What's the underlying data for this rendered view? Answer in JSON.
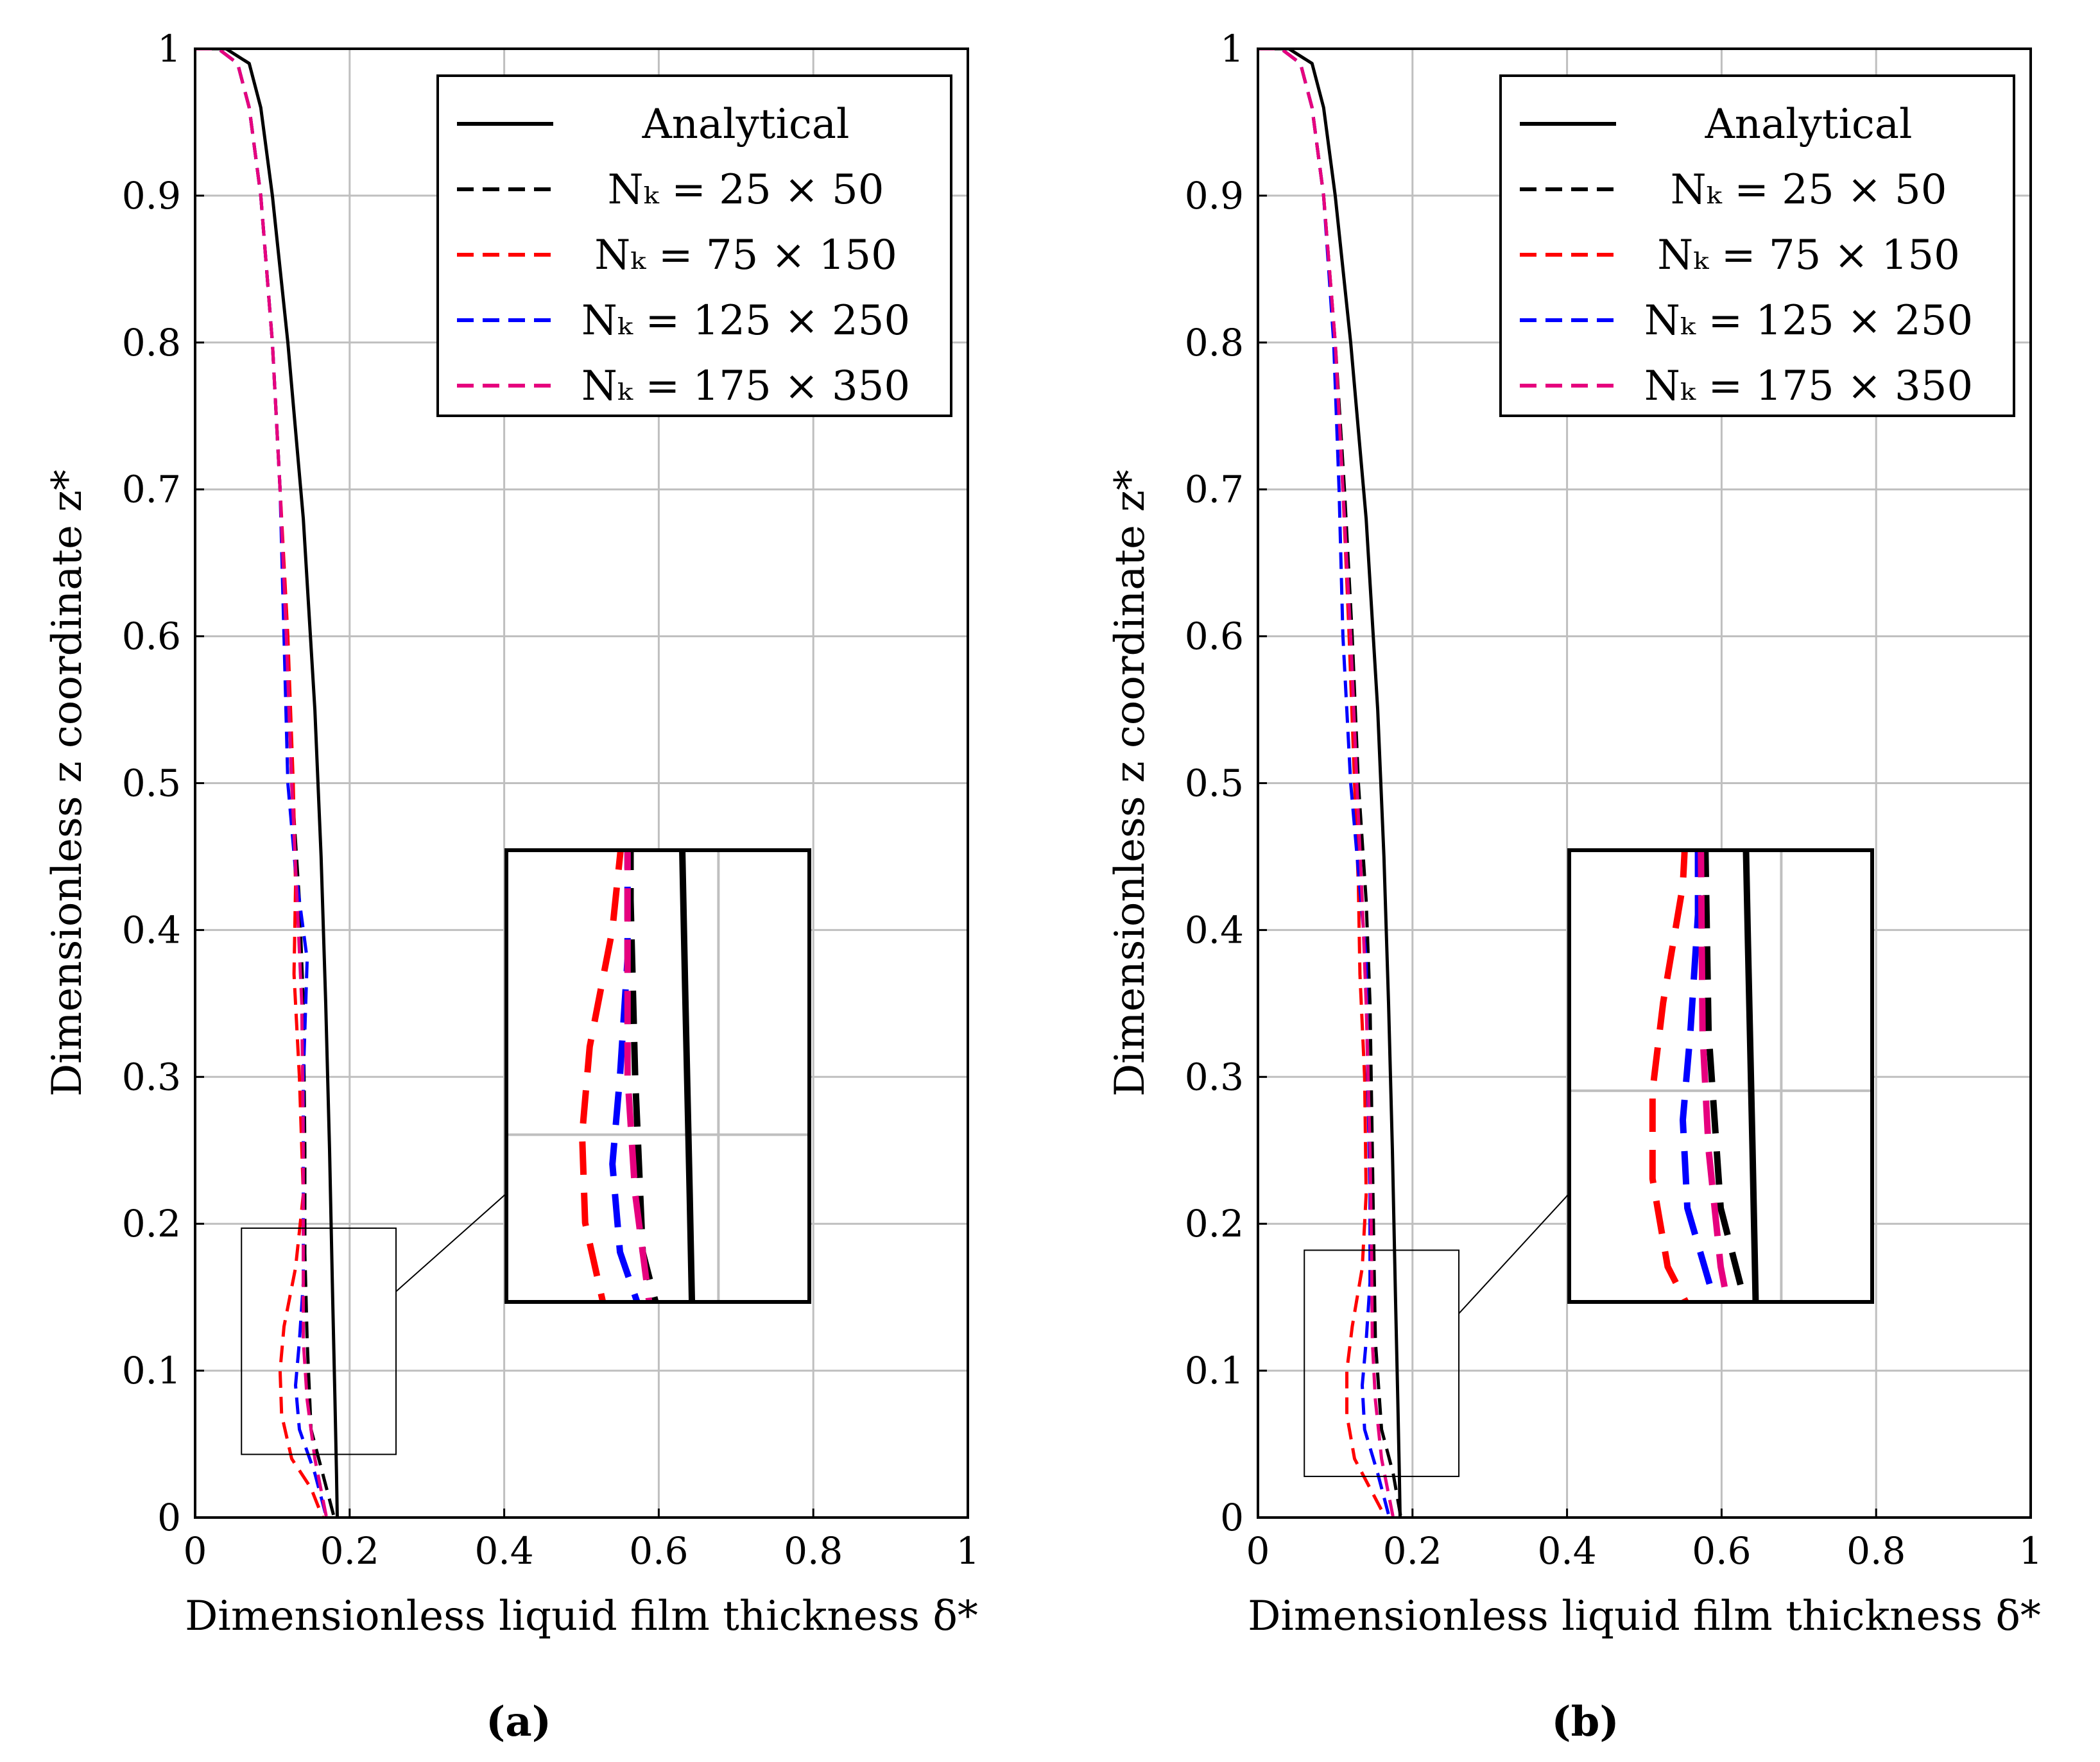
{
  "legend_entries": [
    {
      "label": "Analytical",
      "color": "#000000",
      "dash": "solid"
    },
    {
      "label": "Nₖ = 25 × 50",
      "color": "#000000",
      "dash": "dashed"
    },
    {
      "label": "Nₖ = 75 × 150",
      "color": "#ff0000",
      "dash": "dashed"
    },
    {
      "label": "Nₖ = 125 × 250",
      "color": "#0000ff",
      "dash": "dashed"
    },
    {
      "label": "Nₖ = 175 × 350",
      "color": "#e6007e",
      "dash": "dashed"
    }
  ],
  "chart_data": [
    {
      "type": "line",
      "panel_label": "(a)",
      "xlabel": "Dimensionless liquid film thickness δ*",
      "ylabel": "Dimensionless z coordinate z*",
      "xlim": [
        0,
        1
      ],
      "ylim": [
        0,
        1
      ],
      "xticks": [
        "0",
        "0.2",
        "0.4",
        "0.6",
        "0.8",
        "1"
      ],
      "yticks": [
        "0",
        "0.1",
        "0.2",
        "0.3",
        "0.4",
        "0.5",
        "0.6",
        "0.7",
        "0.8",
        "0.9",
        "1"
      ],
      "grid": true,
      "legend_position": "top-right",
      "zoom_region": {
        "x": [
          0.06,
          0.26
        ],
        "y": [
          0.043,
          0.197
        ]
      },
      "series": [
        {
          "name": "Analytical",
          "points": [
            [
              0,
              1
            ],
            [
              0.04,
              1
            ],
            [
              0.07,
              0.99
            ],
            [
              0.085,
              0.96
            ],
            [
              0.1,
              0.9
            ],
            [
              0.12,
              0.8
            ],
            [
              0.14,
              0.68
            ],
            [
              0.155,
              0.55
            ],
            [
              0.163,
              0.45
            ],
            [
              0.169,
              0.35
            ],
            [
              0.174,
              0.25
            ],
            [
              0.178,
              0.15
            ],
            [
              0.181,
              0.08
            ],
            [
              0.183,
              0.03
            ],
            [
              0.184,
              0
            ]
          ]
        },
        {
          "name": "Nₖ = 25 × 50",
          "points": [
            [
              0,
              1
            ],
            [
              0.03,
              1
            ],
            [
              0.055,
              0.99
            ],
            [
              0.07,
              0.96
            ],
            [
              0.085,
              0.9
            ],
            [
              0.1,
              0.8
            ],
            [
              0.11,
              0.7
            ],
            [
              0.118,
              0.6
            ],
            [
              0.125,
              0.5
            ],
            [
              0.135,
              0.42
            ],
            [
              0.14,
              0.35
            ],
            [
              0.142,
              0.25
            ],
            [
              0.142,
              0.18
            ],
            [
              0.145,
              0.12
            ],
            [
              0.15,
              0.06
            ],
            [
              0.165,
              0.03
            ],
            [
              0.18,
              0
            ]
          ]
        },
        {
          "name": "Nₖ = 75 × 150",
          "points": [
            [
              0,
              1
            ],
            [
              0.03,
              1
            ],
            [
              0.055,
              0.99
            ],
            [
              0.07,
              0.96
            ],
            [
              0.085,
              0.9
            ],
            [
              0.1,
              0.8
            ],
            [
              0.11,
              0.7
            ],
            [
              0.12,
              0.6
            ],
            [
              0.127,
              0.5
            ],
            [
              0.13,
              0.43
            ],
            [
              0.128,
              0.37
            ],
            [
              0.135,
              0.3
            ],
            [
              0.14,
              0.22
            ],
            [
              0.13,
              0.17
            ],
            [
              0.115,
              0.13
            ],
            [
              0.11,
              0.1
            ],
            [
              0.112,
              0.07
            ],
            [
              0.125,
              0.04
            ],
            [
              0.15,
              0.02
            ],
            [
              0.165,
              0
            ]
          ]
        },
        {
          "name": "Nₖ = 125 × 250",
          "points": [
            [
              0,
              1
            ],
            [
              0.03,
              1
            ],
            [
              0.055,
              0.99
            ],
            [
              0.07,
              0.96
            ],
            [
              0.085,
              0.9
            ],
            [
              0.1,
              0.8
            ],
            [
              0.11,
              0.7
            ],
            [
              0.115,
              0.6
            ],
            [
              0.12,
              0.5
            ],
            [
              0.13,
              0.44
            ],
            [
              0.145,
              0.38
            ],
            [
              0.14,
              0.3
            ],
            [
              0.14,
              0.22
            ],
            [
              0.14,
              0.16
            ],
            [
              0.135,
              0.12
            ],
            [
              0.13,
              0.09
            ],
            [
              0.135,
              0.06
            ],
            [
              0.155,
              0.03
            ],
            [
              0.17,
              0
            ]
          ]
        },
        {
          "name": "Nₖ = 175 × 350",
          "points": [
            [
              0,
              1
            ],
            [
              0.03,
              1
            ],
            [
              0.055,
              0.99
            ],
            [
              0.07,
              0.96
            ],
            [
              0.085,
              0.9
            ],
            [
              0.1,
              0.8
            ],
            [
              0.11,
              0.7
            ],
            [
              0.118,
              0.6
            ],
            [
              0.125,
              0.5
            ],
            [
              0.132,
              0.42
            ],
            [
              0.138,
              0.35
            ],
            [
              0.14,
              0.25
            ],
            [
              0.14,
              0.18
            ],
            [
              0.14,
              0.12
            ],
            [
              0.145,
              0.08
            ],
            [
              0.155,
              0.04
            ],
            [
              0.17,
              0
            ]
          ]
        }
      ]
    },
    {
      "type": "line",
      "panel_label": "(b)",
      "xlabel": "Dimensionless liquid film thickness δ*",
      "ylabel": "Dimensionless z coordinate z*",
      "xlim": [
        0,
        1
      ],
      "ylim": [
        0,
        1
      ],
      "xticks": [
        "0",
        "0.2",
        "0.4",
        "0.6",
        "0.8",
        "1"
      ],
      "yticks": [
        "0",
        "0.1",
        "0.2",
        "0.3",
        "0.4",
        "0.5",
        "0.6",
        "0.7",
        "0.8",
        "0.9",
        "1"
      ],
      "grid": true,
      "legend_position": "top-right",
      "zoom_region": {
        "x": [
          0.06,
          0.26
        ],
        "y": [
          0.028,
          0.182
        ]
      },
      "series": [
        {
          "name": "Analytical",
          "points": [
            [
              0,
              1
            ],
            [
              0.04,
              1
            ],
            [
              0.07,
              0.99
            ],
            [
              0.085,
              0.96
            ],
            [
              0.1,
              0.9
            ],
            [
              0.12,
              0.8
            ],
            [
              0.14,
              0.68
            ],
            [
              0.155,
              0.55
            ],
            [
              0.163,
              0.45
            ],
            [
              0.169,
              0.35
            ],
            [
              0.174,
              0.25
            ],
            [
              0.178,
              0.15
            ],
            [
              0.181,
              0.08
            ],
            [
              0.183,
              0.03
            ],
            [
              0.184,
              0
            ]
          ]
        },
        {
          "name": "Nₖ = 25 × 50",
          "points": [
            [
              0,
              1
            ],
            [
              0.03,
              1
            ],
            [
              0.055,
              0.99
            ],
            [
              0.07,
              0.96
            ],
            [
              0.085,
              0.9
            ],
            [
              0.1,
              0.8
            ],
            [
              0.112,
              0.7
            ],
            [
              0.122,
              0.6
            ],
            [
              0.13,
              0.5
            ],
            [
              0.14,
              0.42
            ],
            [
              0.145,
              0.35
            ],
            [
              0.148,
              0.25
            ],
            [
              0.15,
              0.18
            ],
            [
              0.152,
              0.12
            ],
            [
              0.16,
              0.06
            ],
            [
              0.175,
              0.03
            ],
            [
              0.185,
              0
            ]
          ]
        },
        {
          "name": "Nₖ = 75 × 150",
          "points": [
            [
              0,
              1
            ],
            [
              0.03,
              1
            ],
            [
              0.055,
              0.99
            ],
            [
              0.07,
              0.96
            ],
            [
              0.085,
              0.9
            ],
            [
              0.1,
              0.8
            ],
            [
              0.11,
              0.7
            ],
            [
              0.118,
              0.6
            ],
            [
              0.125,
              0.5
            ],
            [
              0.13,
              0.43
            ],
            [
              0.132,
              0.37
            ],
            [
              0.138,
              0.3
            ],
            [
              0.14,
              0.22
            ],
            [
              0.135,
              0.17
            ],
            [
              0.122,
              0.13
            ],
            [
              0.115,
              0.1
            ],
            [
              0.115,
              0.07
            ],
            [
              0.125,
              0.04
            ],
            [
              0.145,
              0.02
            ],
            [
              0.165,
              0
            ]
          ]
        },
        {
          "name": "Nₖ = 125 × 250",
          "points": [
            [
              0,
              1
            ],
            [
              0.03,
              1
            ],
            [
              0.055,
              0.99
            ],
            [
              0.07,
              0.96
            ],
            [
              0.085,
              0.9
            ],
            [
              0.098,
              0.8
            ],
            [
              0.105,
              0.7
            ],
            [
              0.11,
              0.6
            ],
            [
              0.12,
              0.5
            ],
            [
              0.13,
              0.44
            ],
            [
              0.14,
              0.38
            ],
            [
              0.142,
              0.3
            ],
            [
              0.145,
              0.22
            ],
            [
              0.145,
              0.16
            ],
            [
              0.14,
              0.12
            ],
            [
              0.135,
              0.09
            ],
            [
              0.138,
              0.06
            ],
            [
              0.155,
              0.03
            ],
            [
              0.17,
              0
            ]
          ]
        },
        {
          "name": "Nₖ = 175 × 350",
          "points": [
            [
              0,
              1
            ],
            [
              0.03,
              1
            ],
            [
              0.055,
              0.99
            ],
            [
              0.07,
              0.96
            ],
            [
              0.085,
              0.9
            ],
            [
              0.1,
              0.8
            ],
            [
              0.11,
              0.7
            ],
            [
              0.12,
              0.6
            ],
            [
              0.128,
              0.5
            ],
            [
              0.135,
              0.42
            ],
            [
              0.14,
              0.35
            ],
            [
              0.145,
              0.25
            ],
            [
              0.147,
              0.18
            ],
            [
              0.148,
              0.12
            ],
            [
              0.152,
              0.08
            ],
            [
              0.16,
              0.04
            ],
            [
              0.175,
              0
            ]
          ]
        }
      ]
    }
  ]
}
